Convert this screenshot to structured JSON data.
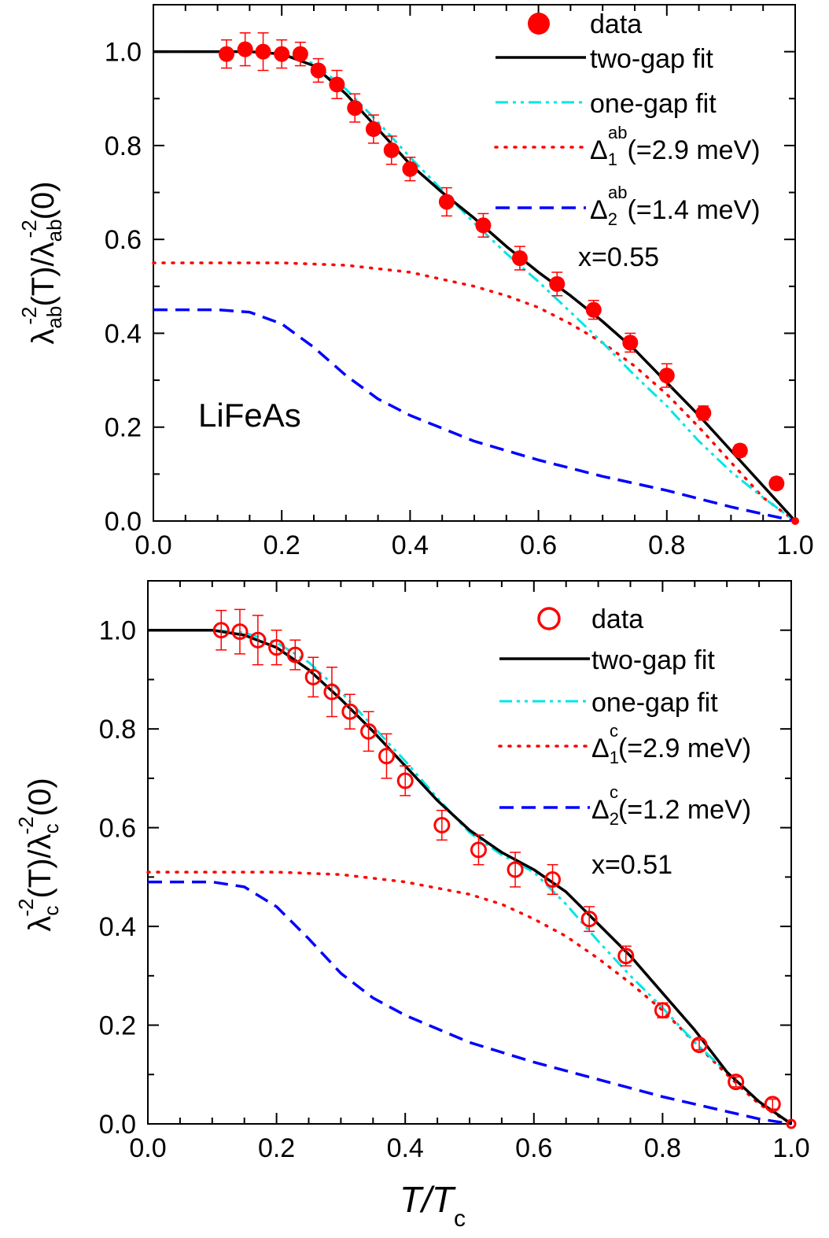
{
  "chart_data": [
    {
      "type": "scatter",
      "xlim": [
        0.0,
        1.0
      ],
      "ylim": [
        0.0,
        1.1
      ],
      "xticks": [
        "0.0",
        "0.2",
        "0.4",
        "0.6",
        "0.8",
        "1.0"
      ],
      "yticks": [
        "0.0",
        "0.2",
        "0.4",
        "0.6",
        "0.8",
        "1.0"
      ],
      "ylabel": {
        "main": "λ",
        "sup1": "-2",
        "sub1": "ab",
        "mid": "(T)/λ",
        "sup2": "-2",
        "sub2": "ab",
        "tail": "(0)"
      },
      "annotation": "LiFeAs",
      "legend_placement": "top-right",
      "legend": {
        "data": "data",
        "two_gap": "two-gap fit",
        "one_gap": "one-gap fit",
        "gap1": {
          "symbol": "Δ",
          "sup": "ab",
          "sub": "1",
          "value": "(=2.9 meV)"
        },
        "gap2": {
          "symbol": "Δ",
          "sup": "ab",
          "sub": "2",
          "value": "(=1.4 meV)"
        },
        "x_text": "x=0.55"
      },
      "colors": {
        "data": "#ff0000",
        "two_gap": "#000000",
        "one_gap": "#00e5e5",
        "gap1": "#ff0000",
        "gap2": "#0000ff"
      },
      "marker": "filled-circle",
      "data_points": {
        "x": [
          0.114,
          0.143,
          0.171,
          0.2,
          0.229,
          0.257,
          0.286,
          0.314,
          0.343,
          0.371,
          0.4,
          0.457,
          0.514,
          0.571,
          0.629,
          0.686,
          0.743,
          0.8,
          0.857,
          0.914,
          0.971,
          1.0
        ],
        "y": [
          0.995,
          1.005,
          1.0,
          0.995,
          0.995,
          0.96,
          0.93,
          0.88,
          0.835,
          0.79,
          0.75,
          0.68,
          0.63,
          0.56,
          0.505,
          0.45,
          0.38,
          0.31,
          0.23,
          0.15,
          0.08,
          0.0
        ],
        "err": [
          0.03,
          0.035,
          0.04,
          0.03,
          0.025,
          0.025,
          0.03,
          0.03,
          0.03,
          0.03,
          0.025,
          0.03,
          0.025,
          0.025,
          0.025,
          0.02,
          0.02,
          0.025,
          0.015,
          0.012,
          0.012,
          0.0
        ]
      },
      "two_gap_fit": {
        "x": [
          0.0,
          0.15,
          0.2,
          0.25,
          0.3,
          0.35,
          0.4,
          0.45,
          0.5,
          0.55,
          0.6,
          0.65,
          0.7,
          0.75,
          0.8,
          0.85,
          0.9,
          0.95,
          1.0
        ],
        "y": [
          1.0,
          1.0,
          0.995,
          0.97,
          0.91,
          0.835,
          0.76,
          0.7,
          0.645,
          0.585,
          0.53,
          0.48,
          0.425,
          0.365,
          0.295,
          0.225,
          0.15,
          0.075,
          0.0
        ]
      },
      "one_gap_fit": {
        "x": [
          0.0,
          0.15,
          0.2,
          0.25,
          0.3,
          0.35,
          0.4,
          0.45,
          0.5,
          0.55,
          0.6,
          0.65,
          0.7,
          0.75,
          0.8,
          0.85,
          0.9,
          0.95,
          1.0
        ],
        "y": [
          1.0,
          1.0,
          0.995,
          0.975,
          0.92,
          0.85,
          0.775,
          0.705,
          0.635,
          0.57,
          0.51,
          0.445,
          0.38,
          0.31,
          0.245,
          0.17,
          0.105,
          0.05,
          0.0
        ]
      },
      "gap1_curve": {
        "x": [
          0.0,
          0.1,
          0.2,
          0.3,
          0.4,
          0.5,
          0.55,
          0.6,
          0.65,
          0.7,
          0.75,
          0.8,
          0.85,
          0.9,
          0.95,
          1.0
        ],
        "y": [
          0.55,
          0.55,
          0.55,
          0.545,
          0.53,
          0.5,
          0.48,
          0.455,
          0.42,
          0.38,
          0.33,
          0.27,
          0.2,
          0.125,
          0.05,
          0.0
        ]
      },
      "gap2_curve": {
        "x": [
          0.0,
          0.1,
          0.15,
          0.2,
          0.25,
          0.3,
          0.35,
          0.4,
          0.5,
          0.6,
          0.7,
          0.8,
          0.9,
          0.95,
          1.0
        ],
        "y": [
          0.45,
          0.45,
          0.445,
          0.42,
          0.37,
          0.31,
          0.26,
          0.225,
          0.17,
          0.13,
          0.095,
          0.065,
          0.03,
          0.015,
          0.0
        ]
      }
    },
    {
      "type": "scatter",
      "xlim": [
        0.0,
        1.0
      ],
      "ylim": [
        0.0,
        1.1
      ],
      "xticks": [
        "0.0",
        "0.2",
        "0.4",
        "0.6",
        "0.8",
        "1.0"
      ],
      "yticks": [
        "0.0",
        "0.2",
        "0.4",
        "0.6",
        "0.8",
        "1.0"
      ],
      "ylabel": {
        "main": "λ",
        "sup1": "-2",
        "sub1": "c",
        "mid": "(T)/λ",
        "sup2": "-2",
        "sub2": "c",
        "tail": "(0)"
      },
      "xlabel": {
        "main": "T/T",
        "sub": "c"
      },
      "legend_placement": "top-right",
      "legend": {
        "data": "data",
        "two_gap": "two-gap fit",
        "one_gap": "one-gap fit",
        "gap1": {
          "symbol": "Δ",
          "sup": "c",
          "sub": "1",
          "value": "(=2.9 meV)"
        },
        "gap2": {
          "symbol": "Δ",
          "sup": "c",
          "sub": "2",
          "value": "(=1.2 meV)"
        },
        "x_text": "x=0.51"
      },
      "colors": {
        "data": "#ff0000",
        "two_gap": "#000000",
        "one_gap": "#00e5e5",
        "gap1": "#ff0000",
        "gap2": "#0000ff"
      },
      "marker": "open-circle",
      "data_points": {
        "x": [
          0.114,
          0.143,
          0.171,
          0.2,
          0.229,
          0.257,
          0.286,
          0.314,
          0.343,
          0.371,
          0.4,
          0.457,
          0.514,
          0.571,
          0.629,
          0.686,
          0.743,
          0.8,
          0.857,
          0.914,
          0.971,
          1.0
        ],
        "y": [
          1.0,
          0.997,
          0.98,
          0.965,
          0.95,
          0.905,
          0.875,
          0.835,
          0.795,
          0.745,
          0.695,
          0.605,
          0.555,
          0.515,
          0.495,
          0.415,
          0.34,
          0.23,
          0.16,
          0.085,
          0.04,
          0.0
        ],
        "err": [
          0.04,
          0.045,
          0.05,
          0.035,
          0.03,
          0.04,
          0.05,
          0.035,
          0.04,
          0.045,
          0.03,
          0.03,
          0.03,
          0.035,
          0.03,
          0.025,
          0.02,
          0.015,
          0.01,
          0.01,
          0.01,
          0.0
        ]
      },
      "two_gap_fit": {
        "x": [
          0.0,
          0.1,
          0.15,
          0.2,
          0.25,
          0.3,
          0.35,
          0.4,
          0.45,
          0.5,
          0.55,
          0.6,
          0.65,
          0.7,
          0.75,
          0.8,
          0.85,
          0.9,
          0.95,
          1.0
        ],
        "y": [
          1.0,
          1.0,
          0.99,
          0.965,
          0.92,
          0.86,
          0.795,
          0.725,
          0.655,
          0.595,
          0.55,
          0.515,
          0.47,
          0.405,
          0.34,
          0.265,
          0.19,
          0.105,
          0.045,
          0.0
        ]
      },
      "one_gap_fit": {
        "x": [
          0.0,
          0.1,
          0.15,
          0.2,
          0.25,
          0.3,
          0.35,
          0.4,
          0.45,
          0.5,
          0.55,
          0.6,
          0.65,
          0.7,
          0.75,
          0.8,
          0.85,
          0.9,
          0.95,
          1.0
        ],
        "y": [
          1.0,
          1.0,
          0.995,
          0.975,
          0.935,
          0.875,
          0.805,
          0.735,
          0.66,
          0.59,
          0.545,
          0.51,
          0.445,
          0.37,
          0.3,
          0.235,
          0.165,
          0.105,
          0.045,
          0.0
        ]
      },
      "gap1_curve": {
        "x": [
          0.0,
          0.1,
          0.2,
          0.3,
          0.4,
          0.5,
          0.55,
          0.6,
          0.65,
          0.7,
          0.75,
          0.8,
          0.85,
          0.9,
          0.95,
          1.0
        ],
        "y": [
          0.51,
          0.51,
          0.51,
          0.505,
          0.49,
          0.465,
          0.445,
          0.415,
          0.38,
          0.335,
          0.285,
          0.23,
          0.165,
          0.1,
          0.04,
          0.0
        ]
      },
      "gap2_curve": {
        "x": [
          0.0,
          0.1,
          0.15,
          0.2,
          0.25,
          0.3,
          0.35,
          0.4,
          0.5,
          0.6,
          0.7,
          0.8,
          0.9,
          0.95,
          1.0
        ],
        "y": [
          0.49,
          0.49,
          0.48,
          0.44,
          0.375,
          0.305,
          0.255,
          0.22,
          0.165,
          0.125,
          0.09,
          0.055,
          0.025,
          0.01,
          0.0
        ]
      }
    }
  ]
}
